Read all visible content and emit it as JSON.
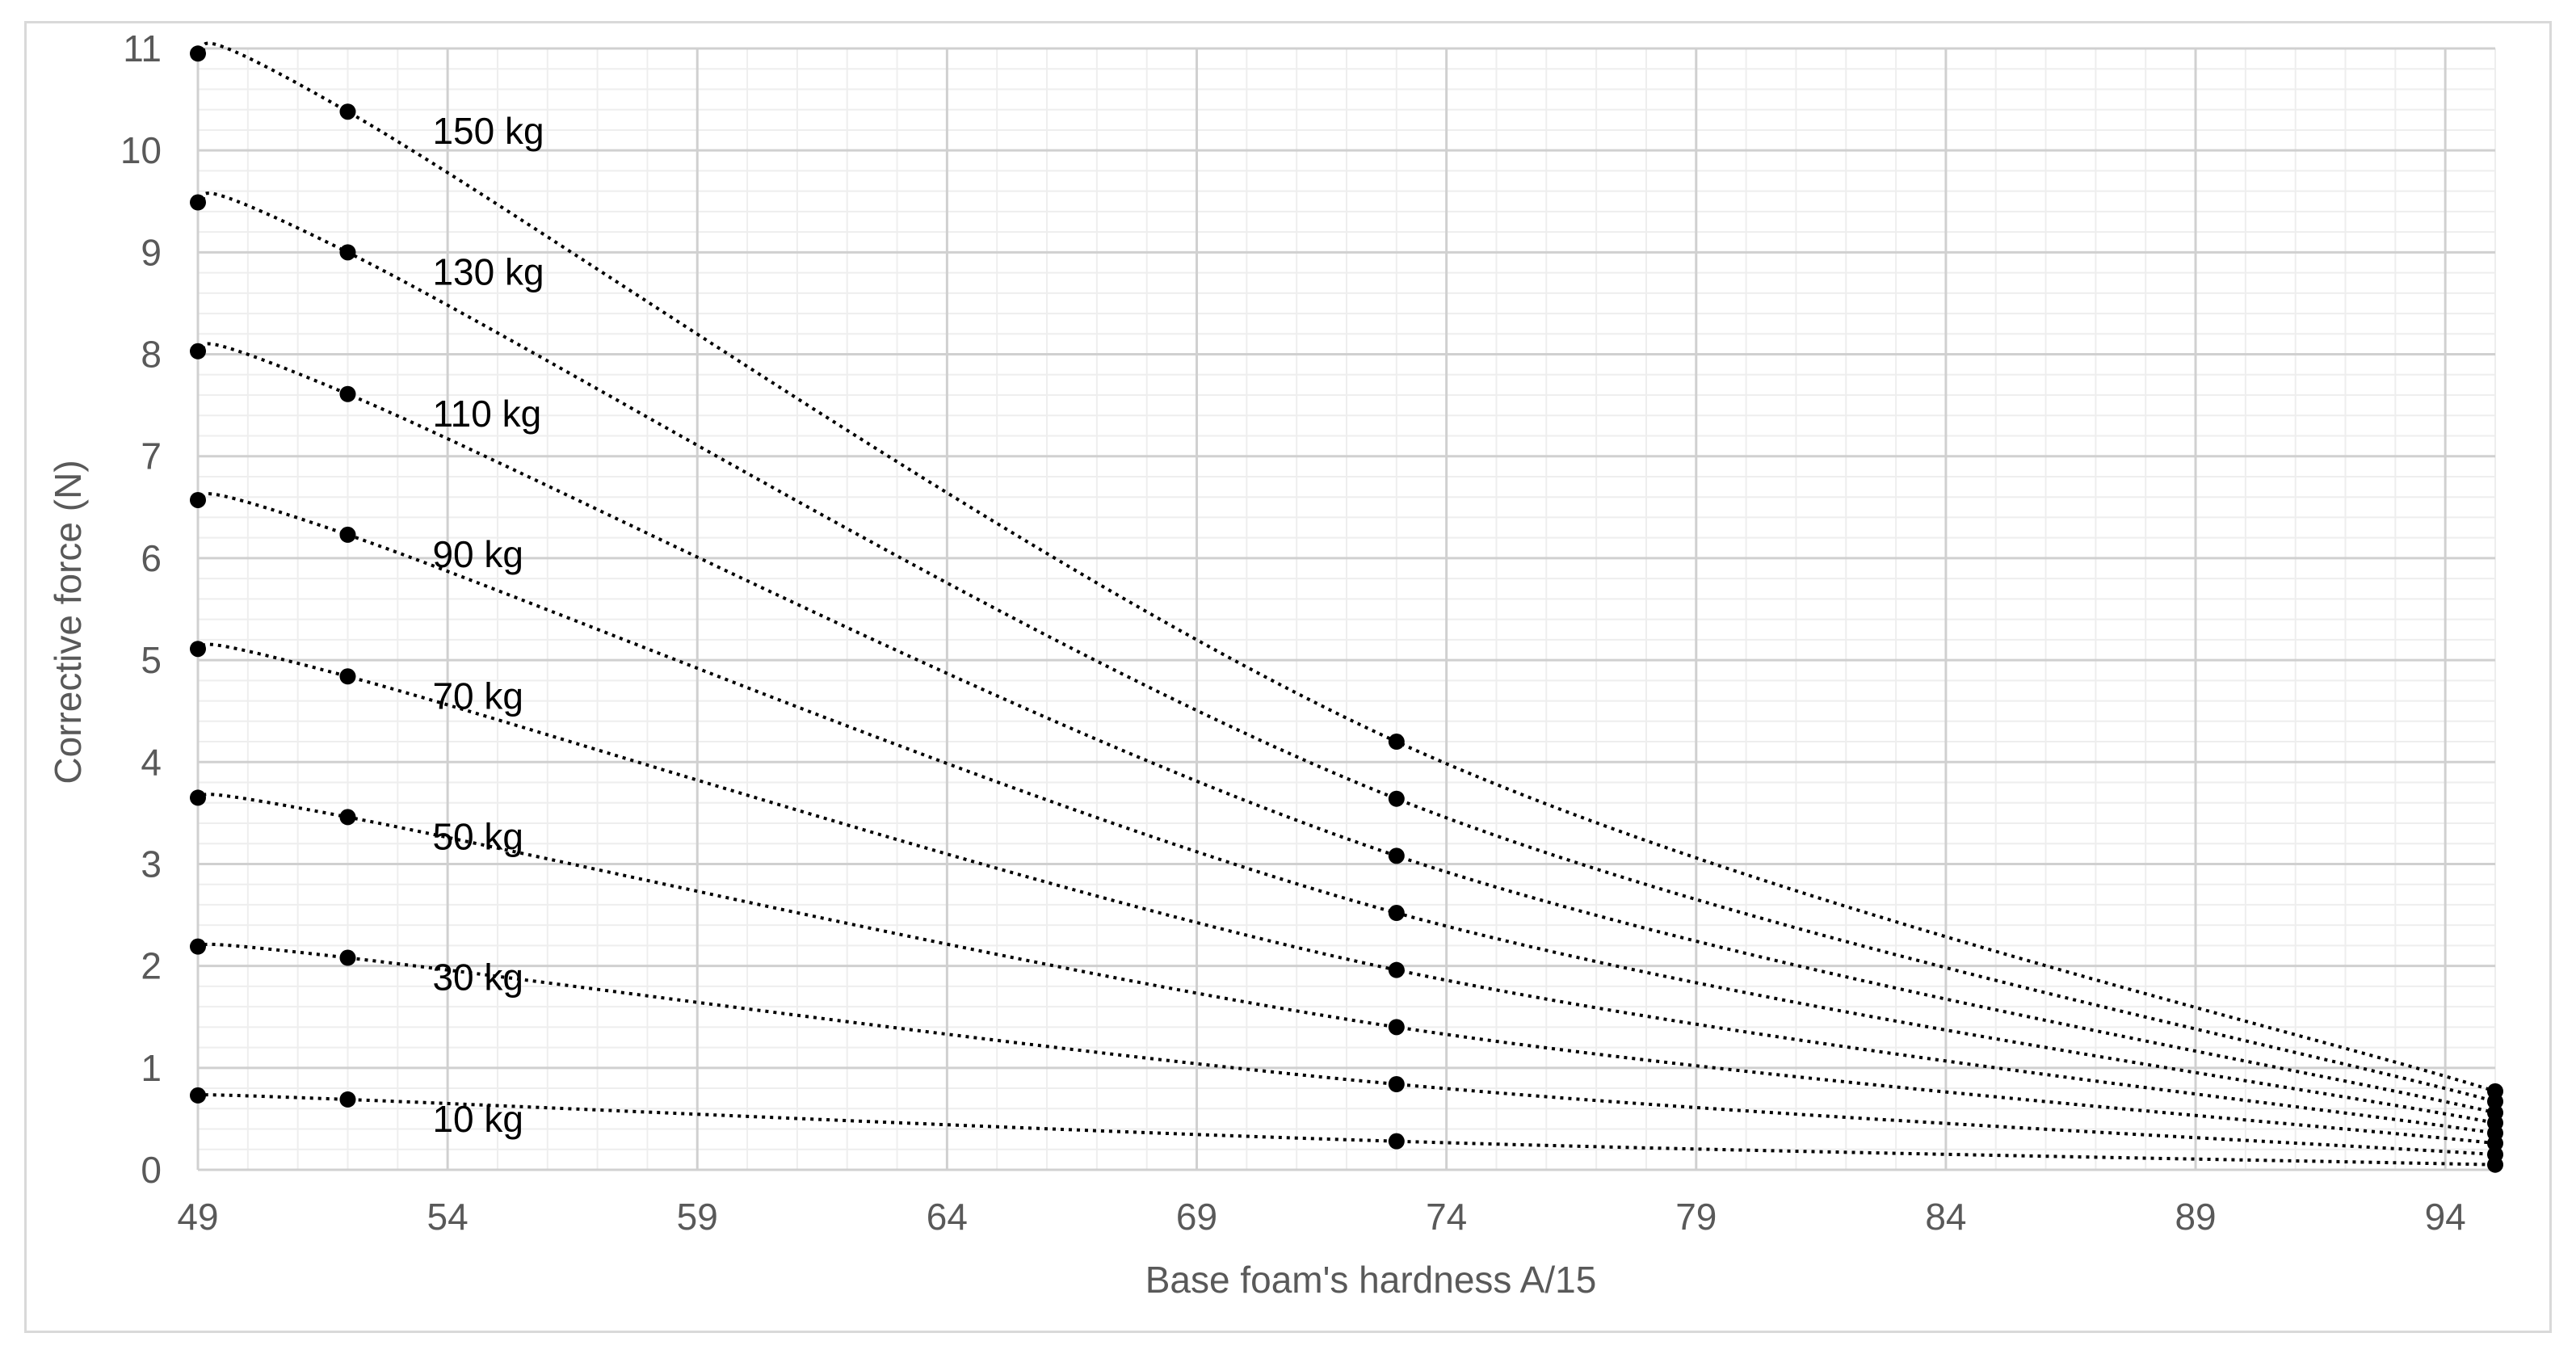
{
  "chart_data": {
    "type": "line",
    "xlabel": "Base foam's hardness A/15",
    "ylabel": "Corrective force (N)",
    "xlim": [
      49,
      95
    ],
    "ylim": [
      0,
      11
    ],
    "x_ticks": [
      "49",
      "54",
      "59",
      "64",
      "69",
      "74",
      "79",
      "84",
      "89",
      "94"
    ],
    "y_ticks": [
      "0",
      "1",
      "2",
      "3",
      "4",
      "5",
      "6",
      "7",
      "8",
      "9",
      "10",
      "11"
    ],
    "grid": true,
    "legend": "none",
    "line_style": "dotted",
    "marker": "circle",
    "x": [
      49,
      52,
      73,
      95
    ],
    "series": [
      {
        "name": "150 kg",
        "values": [
          10.95,
          10.38,
          4.2,
          0.77
        ]
      },
      {
        "name": "130 kg",
        "values": [
          9.49,
          9.0,
          3.64,
          0.67
        ]
      },
      {
        "name": "110 kg",
        "values": [
          8.03,
          7.61,
          3.08,
          0.56
        ]
      },
      {
        "name": "90 kg",
        "values": [
          6.57,
          6.23,
          2.52,
          0.46
        ]
      },
      {
        "name": "70 kg",
        "values": [
          5.11,
          4.84,
          1.96,
          0.36
        ]
      },
      {
        "name": "50 kg",
        "values": [
          3.65,
          3.46,
          1.4,
          0.26
        ]
      },
      {
        "name": "30 kg",
        "values": [
          2.19,
          2.08,
          0.84,
          0.15
        ]
      },
      {
        "name": "10 kg",
        "values": [
          0.73,
          0.69,
          0.28,
          0.05
        ]
      }
    ]
  }
}
